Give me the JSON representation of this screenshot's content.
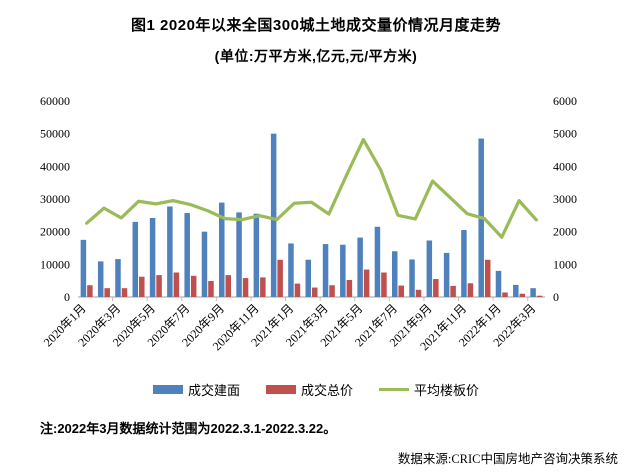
{
  "figure": {
    "title": "图1  2020年以来全国300城土地成交量价情况月度走势",
    "subtitle": "(单位:万平方米,亿元,元/平方米)",
    "note": "注:2022年3月数据统计范围为2022.3.1-2022.3.22。",
    "source": "数据来源:CRIC中国房地产咨询决策系统"
  },
  "chart_data": {
    "type": "bar",
    "subtype": "grouped bars with line overlay (dual axis)",
    "title": "图1  2020年以来全国300城土地成交量价情况月度走势",
    "categories": [
      "2020年1月",
      "2020年2月",
      "2020年3月",
      "2020年4月",
      "2020年5月",
      "2020年6月",
      "2020年7月",
      "2020年8月",
      "2020年9月",
      "2020年10月",
      "2020年11月",
      "2020年12月",
      "2021年1月",
      "2021年2月",
      "2021年3月",
      "2021年4月",
      "2021年5月",
      "2021年6月",
      "2021年7月",
      "2021年8月",
      "2021年9月",
      "2021年10月",
      "2021年11月",
      "2021年12月",
      "2022年1月",
      "2022年2月",
      "2022年3月"
    ],
    "x_tick_label_indices": [
      0,
      2,
      4,
      6,
      8,
      10,
      12,
      14,
      16,
      18,
      20,
      22,
      24,
      26
    ],
    "series": [
      {
        "name": "成交建面",
        "type": "bar",
        "axis": "left",
        "color": "#4F81BD",
        "values": [
          17500,
          10900,
          11600,
          23000,
          24200,
          27700,
          25700,
          20000,
          28900,
          25900,
          25500,
          50000,
          16400,
          11400,
          16200,
          16000,
          18200,
          21500,
          14000,
          11500,
          17300,
          13500,
          20500,
          48500,
          8000,
          3700,
          2700
        ]
      },
      {
        "name": "成交总价",
        "type": "bar",
        "axis": "left",
        "color": "#C0504D",
        "values": [
          3600,
          2700,
          2700,
          6200,
          6700,
          7500,
          6500,
          4900,
          6700,
          5800,
          6000,
          11400,
          4100,
          2900,
          3600,
          5200,
          8400,
          7500,
          3500,
          2200,
          5500,
          3400,
          4200,
          11400,
          1400,
          1000,
          400
        ]
      },
      {
        "name": "平均楼板价",
        "type": "line",
        "axis": "right",
        "color": "#9BBB59",
        "values": [
          2260,
          2720,
          2420,
          2930,
          2850,
          2950,
          2830,
          2640,
          2400,
          2370,
          2490,
          2370,
          2870,
          2900,
          2540,
          3700,
          4820,
          3890,
          2500,
          2390,
          3550,
          3050,
          2550,
          2400,
          1830,
          2950,
          2360
        ]
      }
    ],
    "left_axis": {
      "min": 0,
      "max": 60000,
      "step": 10000,
      "ticks": [
        0,
        10000,
        20000,
        30000,
        40000,
        50000,
        60000
      ]
    },
    "right_axis": {
      "min": 0,
      "max": 6000,
      "step": 1000,
      "ticks": [
        0,
        1000,
        2000,
        3000,
        4000,
        5000,
        6000
      ]
    },
    "grid": false,
    "legend_position": "bottom",
    "axis_line_color": "#BFBFBF"
  }
}
